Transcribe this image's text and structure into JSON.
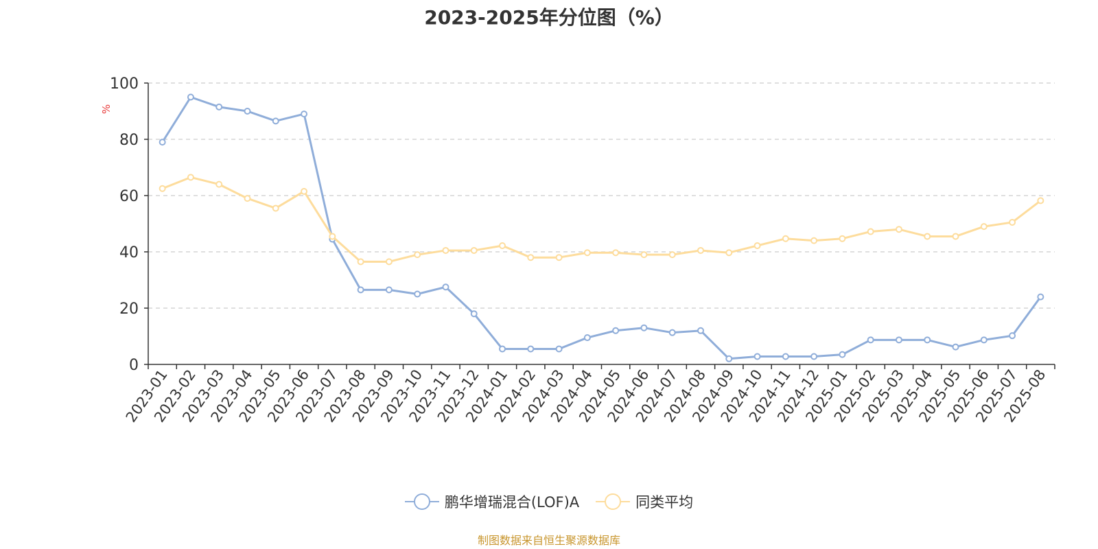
{
  "chart_data": {
    "type": "line",
    "title": "2023-2025年分位图（%）",
    "ylabel": "%",
    "xlabel": "",
    "ylim": [
      0,
      100
    ],
    "yticks": [
      0,
      20,
      40,
      60,
      80,
      100
    ],
    "grid": true,
    "legend_position": "bottom",
    "categories": [
      "2023-01",
      "2023-02",
      "2023-03",
      "2023-04",
      "2023-05",
      "2023-06",
      "2023-07",
      "2023-08",
      "2023-09",
      "2023-10",
      "2023-11",
      "2023-12",
      "2024-01",
      "2024-02",
      "2024-03",
      "2024-04",
      "2024-05",
      "2024-06",
      "2024-07",
      "2024-08",
      "2024-09",
      "2024-10",
      "2024-11",
      "2024-12",
      "2025-01",
      "2025-02",
      "2025-03",
      "2025-04",
      "2025-05",
      "2025-06",
      "2025-07",
      "2025-08"
    ],
    "series": [
      {
        "name": "鹏华增瑞混合(LOF)A",
        "color": "#8fadd9",
        "values": [
          79,
          95,
          91.5,
          90,
          86.5,
          89,
          44.5,
          26.5,
          26.5,
          25,
          27.5,
          18,
          5.5,
          5.5,
          5.5,
          9.5,
          12,
          13,
          11.3,
          12,
          2,
          2.8,
          2.8,
          2.8,
          3.5,
          8.7,
          8.7,
          8.7,
          6.2,
          8.7,
          10.2,
          24
        ]
      },
      {
        "name": "同类平均",
        "color": "#fddc9c",
        "values": [
          62.5,
          66.5,
          64,
          59,
          55.5,
          61.5,
          45.5,
          36.5,
          36.5,
          39,
          40.5,
          40.5,
          42.2,
          38,
          38,
          39.7,
          39.7,
          39,
          39,
          40.5,
          39.7,
          42.2,
          44.7,
          44,
          44.7,
          47.2,
          48,
          45.5,
          45.5,
          49,
          50.5,
          58.2
        ]
      }
    ]
  },
  "source_note": "制图数据来自恒生聚源数据库"
}
